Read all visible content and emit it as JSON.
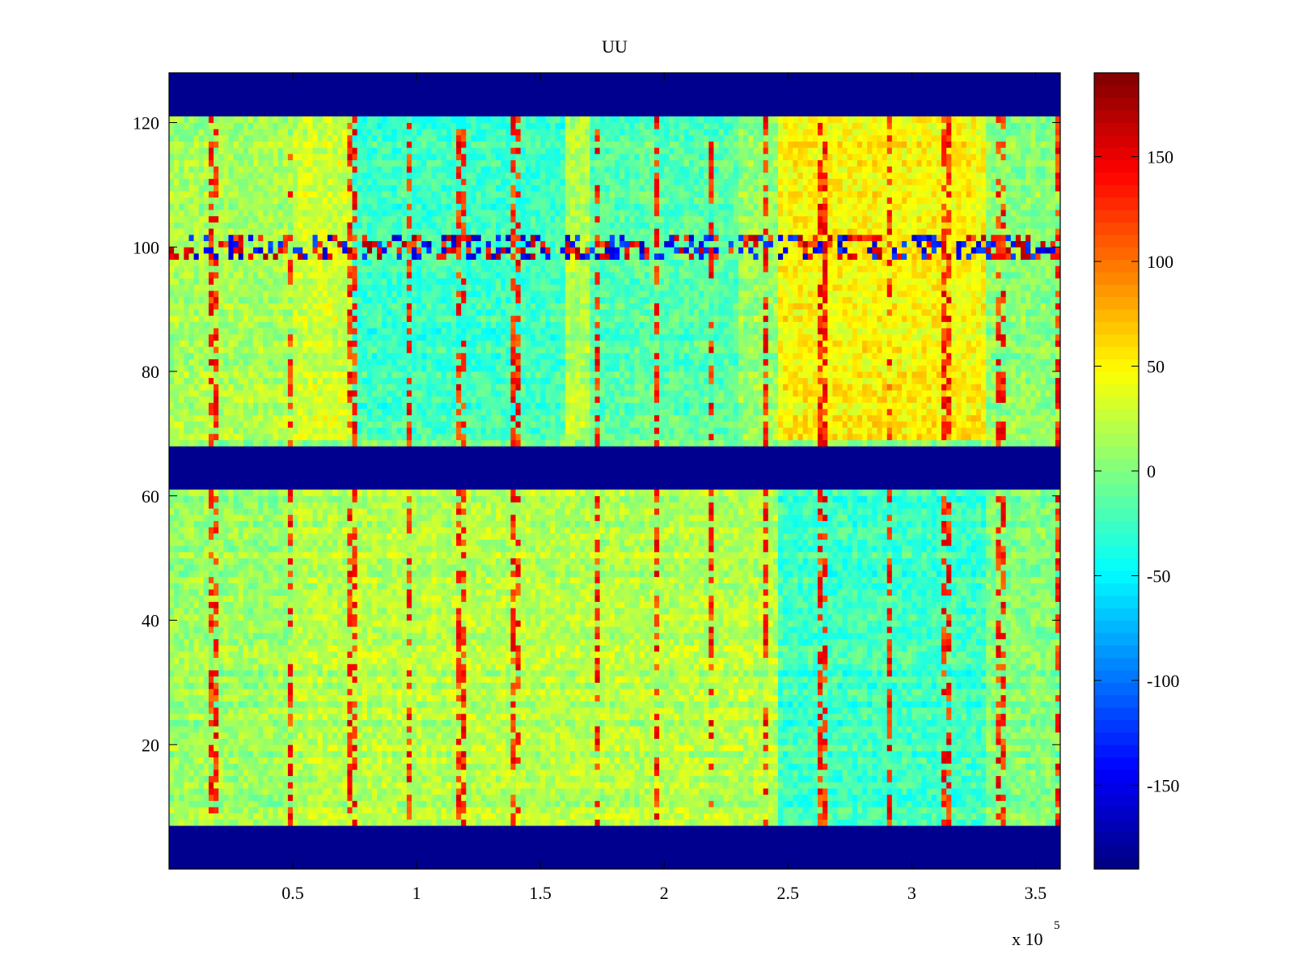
{
  "chart_data": {
    "type": "heatmap",
    "title": "UU",
    "xlabel": "",
    "ylabel": "",
    "x_multiplier_base": "x 10",
    "x_multiplier_exp": "5",
    "xlim": [
      0,
      3.6
    ],
    "ylim": [
      0,
      128
    ],
    "x_ticks": [
      {
        "value": 0.5,
        "label": "0.5"
      },
      {
        "value": 1,
        "label": "1"
      },
      {
        "value": 1.5,
        "label": "1.5"
      },
      {
        "value": 2,
        "label": "2"
      },
      {
        "value": 2.5,
        "label": "2.5"
      },
      {
        "value": 3,
        "label": "3"
      },
      {
        "value": 3.5,
        "label": "3.5"
      }
    ],
    "y_ticks": [
      {
        "value": 20,
        "label": "20"
      },
      {
        "value": 40,
        "label": "40"
      },
      {
        "value": 60,
        "label": "60"
      },
      {
        "value": 80,
        "label": "80"
      },
      {
        "value": 100,
        "label": "100"
      },
      {
        "value": 120,
        "label": "120"
      }
    ],
    "colorbar": {
      "colormap": "jet",
      "range": [
        -190,
        190
      ],
      "ticks": [
        {
          "value": 150,
          "label": "150"
        },
        {
          "value": 100,
          "label": "100"
        },
        {
          "value": 50,
          "label": "50"
        },
        {
          "value": 0,
          "label": "0"
        },
        {
          "value": -50,
          "label": "-50"
        },
        {
          "value": -100,
          "label": "-100"
        },
        {
          "value": -150,
          "label": "-150"
        }
      ]
    },
    "fill_value": -190,
    "empty_bands_y": [
      [
        0,
        7
      ],
      [
        61.5,
        68.5
      ],
      [
        121.5,
        128
      ]
    ],
    "noisy_band_y": [
      98,
      102
    ],
    "regions": [
      {
        "x": [
          0.0,
          0.5
        ],
        "y": [
          69,
          121
        ],
        "value": 15
      },
      {
        "x": [
          0.5,
          0.75
        ],
        "y": [
          69,
          121
        ],
        "value": 30
      },
      {
        "x": [
          0.75,
          1.6
        ],
        "y": [
          69,
          121
        ],
        "value": -25
      },
      {
        "x": [
          1.6,
          1.7
        ],
        "y": [
          69,
          121
        ],
        "value": 20
      },
      {
        "x": [
          1.7,
          2.3
        ],
        "y": [
          69,
          121
        ],
        "value": -15
      },
      {
        "x": [
          2.3,
          2.45
        ],
        "y": [
          69,
          121
        ],
        "value": 10
      },
      {
        "x": [
          2.45,
          3.3
        ],
        "y": [
          69,
          121
        ],
        "value": 50
      },
      {
        "x": [
          3.3,
          3.6
        ],
        "y": [
          69,
          121
        ],
        "value": 5
      },
      {
        "x": [
          0.0,
          0.5
        ],
        "y": [
          7,
          61.5
        ],
        "value": 10
      },
      {
        "x": [
          0.5,
          2.45
        ],
        "y": [
          7,
          61.5
        ],
        "value": 20
      },
      {
        "x": [
          2.45,
          3.3
        ],
        "y": [
          7,
          61.5
        ],
        "value": -25
      },
      {
        "x": [
          3.3,
          3.6
        ],
        "y": [
          7,
          61.5
        ],
        "value": 0
      }
    ],
    "spike_columns_x": [
      0.18,
      0.49,
      0.74,
      0.97,
      1.18,
      1.4,
      1.73,
      1.97,
      2.19,
      2.41,
      2.64,
      2.91,
      3.14,
      3.36,
      3.6
    ]
  }
}
